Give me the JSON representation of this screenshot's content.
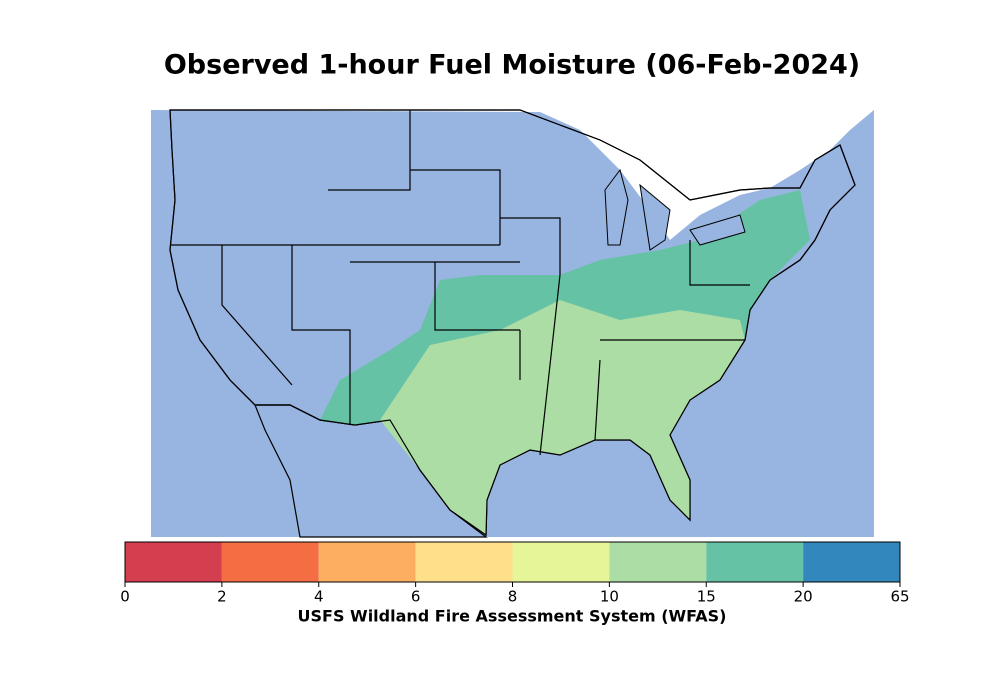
{
  "title": "Observed 1-hour Fuel Moisture (06-Feb-2024)",
  "colorbar": {
    "ticks": [
      0,
      2,
      4,
      6,
      8,
      10,
      15,
      20,
      65
    ],
    "colors": [
      "#d53e4f",
      "#f46d43",
      "#fdae61",
      "#fee08b",
      "#e6f598",
      "#abdda4",
      "#66c2a5",
      "#3288bd"
    ],
    "label": "USFS Wildland Fire Assessment System (WFAS)"
  }
}
